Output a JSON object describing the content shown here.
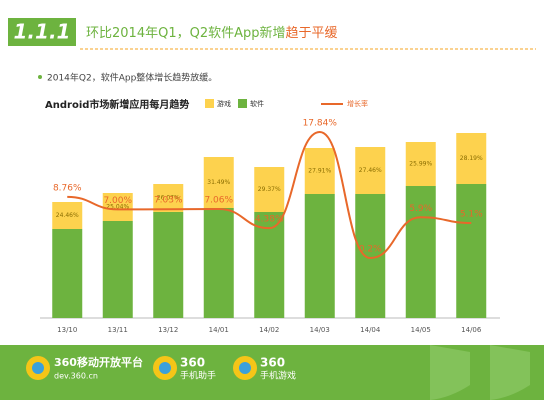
{
  "header": {
    "number": "1.1.1",
    "title": "环比2014年Q1，Q2软件App新增",
    "title_highlight": "趋于平缓",
    "bullet": "2014年Q2，软件App整体增长趋势放缓。"
  },
  "chart_data": {
    "type": "bar",
    "title": "Android市场新增应用每月趋势",
    "stacked": true,
    "categories": [
      "13/10",
      "13/11",
      "13/12",
      "14/01",
      "14/02",
      "14/03",
      "14/04",
      "14/05",
      "14/06"
    ],
    "series": [
      {
        "name": "软件",
        "color": "#6db33f",
        "values": [
          89,
          97,
          106,
          110,
          106,
          124,
          124,
          132,
          134
        ]
      },
      {
        "name": "游戏",
        "color": "#fdd24e",
        "values": [
          27,
          28,
          28,
          51,
          45,
          46,
          47,
          44,
          51
        ],
        "share_labels": [
          "24.46%",
          "25.04%",
          "26.07%",
          "31.49%",
          "29.37%",
          "27.91%",
          "27.46%",
          "25.99%",
          "28.19%"
        ]
      },
      {
        "name": "增长率",
        "type": "line",
        "color": "#e8682a",
        "axis": "y2",
        "values": [
          8.76,
          7.0,
          7.03,
          7.06,
          4.38,
          17.84,
          0.2,
          5.9,
          5.1
        ],
        "value_labels": [
          "8.76%",
          "7.00%",
          "7.03%",
          "7.06%",
          "4.38%",
          "17.84%",
          "0.2%",
          "5.9%",
          "5.1%"
        ]
      }
    ]
  },
  "footer": {
    "brand1": "360移动开放平台",
    "url": "dev.360.cn",
    "brand2": "360",
    "brand2_sub": "手机助手",
    "brand3": "360",
    "brand3_sub": "手机游戏"
  }
}
